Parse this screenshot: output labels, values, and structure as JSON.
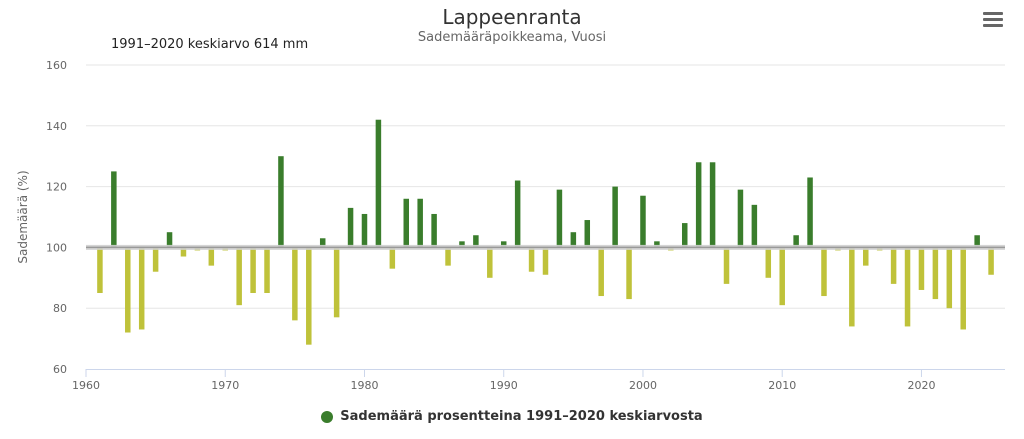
{
  "header": {
    "title": "Lappeenranta",
    "subtitle": "Sademääräpoikkeama, Vuosi",
    "note": "1991–2020 keskiarvo 614 mm",
    "menu_icon": "hamburger-menu-icon"
  },
  "legend": {
    "label": "Sademäärä prosentteina 1991–2020 keskiarvosta"
  },
  "colors": {
    "above": "#3a7d2c",
    "below": "#bfc23a",
    "baseline": "#999999",
    "grid": "#e6e6e6",
    "legend_dot": "#3a7d2c"
  },
  "chart_data": {
    "type": "bar",
    "title": "Lappeenranta",
    "subtitle": "Sademääräpoikkeama, Vuosi",
    "ylabel": "Sademäärä (%)",
    "xlabel": "",
    "baseline": 100,
    "ylim": [
      60,
      160
    ],
    "yticks": [
      60,
      80,
      100,
      120,
      140,
      160
    ],
    "xlim": [
      1960,
      2026
    ],
    "xticks": [
      1960,
      1970,
      1980,
      1990,
      2000,
      2010,
      2020
    ],
    "grid": true,
    "legend_position": "bottom",
    "series": [
      {
        "name": "Sademäärä prosentteina 1991–2020 keskiarvosta",
        "years": [
          1961,
          1962,
          1963,
          1964,
          1965,
          1966,
          1967,
          1968,
          1969,
          1970,
          1971,
          1972,
          1973,
          1974,
          1975,
          1976,
          1977,
          1978,
          1979,
          1980,
          1981,
          1982,
          1983,
          1984,
          1985,
          1986,
          1987,
          1988,
          1989,
          1990,
          1991,
          1992,
          1993,
          1994,
          1995,
          1996,
          1997,
          1998,
          1999,
          2000,
          2001,
          2002,
          2003,
          2004,
          2005,
          2006,
          2007,
          2008,
          2009,
          2010,
          2011,
          2012,
          2013,
          2014,
          2015,
          2016,
          2017,
          2018,
          2019,
          2020,
          2021,
          2022,
          2023,
          2024,
          2025
        ],
        "values": [
          85,
          125,
          72,
          73,
          92,
          105,
          97,
          99,
          94,
          99,
          81,
          85,
          85,
          130,
          76,
          68,
          103,
          77,
          113,
          111,
          142,
          93,
          116,
          116,
          111,
          94,
          102,
          104,
          90,
          102,
          122,
          92,
          91,
          119,
          105,
          109,
          84,
          120,
          83,
          117,
          102,
          99,
          108,
          128,
          128,
          88,
          119,
          114,
          90,
          81,
          104,
          123,
          84,
          99,
          74,
          94,
          99,
          88,
          74,
          86,
          83,
          80,
          73,
          104,
          91
        ]
      }
    ]
  }
}
